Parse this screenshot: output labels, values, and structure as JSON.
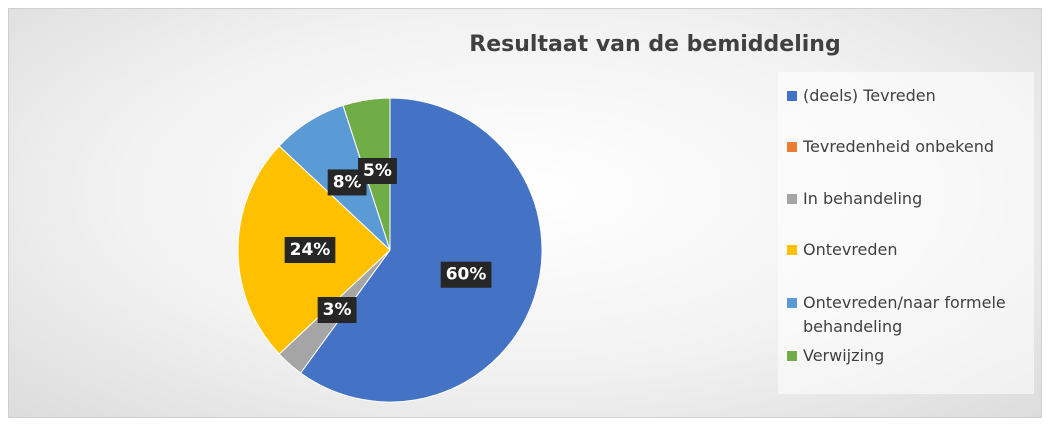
{
  "chart_data": {
    "type": "pie",
    "title": "Resultaat van de bemiddeling",
    "categories": [
      "(deels) Tevreden",
      "Tevredenheid onbekend",
      "In behandeling",
      "Ontevreden",
      "Ontevreden/naar formele behandeling",
      "Verwijzing"
    ],
    "values": [
      60,
      0,
      3,
      24,
      8,
      5
    ],
    "value_labels": [
      "60%",
      null,
      "3%",
      "24%",
      "8%",
      "5%"
    ],
    "colors": [
      "#4472c4",
      "#ed7d31",
      "#a5a5a5",
      "#ffc000",
      "#5b9bd5",
      "#70ad47"
    ],
    "legend": "right"
  }
}
